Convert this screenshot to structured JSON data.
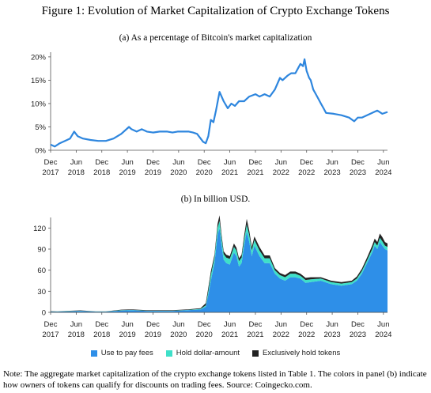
{
  "figure": {
    "title": "Figure 1: Evolution of Market Capitalization of Crypto Exchange Tokens",
    "note": "Note: The aggregate market capitalization of the crypto exchange tokens listed in Table 1. The colors in panel (b) indicate how owners of tokens can qualify for discounts on trading fees. Source: Coingecko.com."
  },
  "chart_data": [
    {
      "type": "line",
      "title": "(a) As a percentage of Bitcoin's market capitalization",
      "x_ticks": [
        {
          "m": "Dec",
          "y": "2017",
          "t": 2017.92
        },
        {
          "m": "Jun",
          "y": "2018",
          "t": 2018.42
        },
        {
          "m": "Dec",
          "y": "2018",
          "t": 2018.92
        },
        {
          "m": "Jun",
          "y": "2019",
          "t": 2019.42
        },
        {
          "m": "Dec",
          "y": "2019",
          "t": 2019.92
        },
        {
          "m": "Jun",
          "y": "2020",
          "t": 2020.42
        },
        {
          "m": "Dec",
          "y": "2020",
          "t": 2020.92
        },
        {
          "m": "Jun",
          "y": "2021",
          "t": 2021.42
        },
        {
          "m": "Dec",
          "y": "2021",
          "t": 2021.92
        },
        {
          "m": "Jun",
          "y": "2022",
          "t": 2022.42
        },
        {
          "m": "Dec",
          "y": "2022",
          "t": 2022.92
        },
        {
          "m": "Jun",
          "y": "2023",
          "t": 2023.42
        },
        {
          "m": "Dec",
          "y": "2023",
          "t": 2023.92
        },
        {
          "m": "Jun",
          "y": "2024",
          "t": 2024.42
        }
      ],
      "y_ticks": [
        {
          "label": "0%",
          "v": 0
        },
        {
          "label": "5%",
          "v": 5
        },
        {
          "label": "10%",
          "v": 10
        },
        {
          "label": "15%",
          "v": 15
        },
        {
          "label": "20%",
          "v": 20
        }
      ],
      "xlim": [
        2017.92,
        2024.5
      ],
      "ylim": [
        0,
        21
      ],
      "color": "#2e86de",
      "grid": false,
      "series": [
        {
          "x": [
            2017.92,
            2018.0,
            2018.1,
            2018.2,
            2018.3,
            2018.38,
            2018.45,
            2018.55,
            2018.7,
            2018.85,
            2019.0,
            2019.15,
            2019.3,
            2019.45,
            2019.5,
            2019.6,
            2019.7,
            2019.8,
            2019.92,
            2020.05,
            2020.2,
            2020.3,
            2020.4,
            2020.5,
            2020.62,
            2020.7,
            2020.78,
            2020.85,
            2020.9,
            2020.95,
            2021.0,
            2021.05,
            2021.1,
            2021.15,
            2021.22,
            2021.3,
            2021.38,
            2021.45,
            2021.52,
            2021.6,
            2021.7,
            2021.8,
            2021.92,
            2022.0,
            2022.1,
            2022.2,
            2022.3,
            2022.4,
            2022.45,
            2022.55,
            2022.62,
            2022.7,
            2022.75,
            2022.8,
            2022.85,
            2022.88,
            2022.92,
            2022.97,
            2023.0,
            2023.05,
            2023.1,
            2023.15,
            2023.2,
            2023.25,
            2023.3,
            2023.45,
            2023.6,
            2023.75,
            2023.85,
            2023.92,
            2024.0,
            2024.1,
            2024.2,
            2024.3,
            2024.4,
            2024.5
          ],
          "y": [
            1.2,
            0.8,
            1.5,
            2.0,
            2.5,
            4.0,
            3.0,
            2.5,
            2.2,
            2.0,
            2.0,
            2.5,
            3.5,
            5.0,
            4.5,
            4.0,
            4.5,
            4.0,
            3.8,
            4.0,
            4.0,
            3.8,
            4.0,
            4.0,
            4.0,
            3.8,
            3.5,
            2.5,
            1.8,
            1.5,
            3.0,
            6.5,
            6.0,
            8.5,
            12.5,
            10.5,
            9.0,
            10.0,
            9.5,
            10.5,
            10.5,
            11.5,
            12.0,
            11.5,
            12.0,
            11.5,
            13.0,
            15.5,
            15.0,
            16.0,
            16.5,
            16.5,
            17.5,
            18.5,
            18.0,
            19.5,
            17.0,
            15.5,
            15.0,
            13.0,
            12.0,
            11.0,
            10.0,
            9.0,
            8.0,
            7.8,
            7.5,
            7.0,
            6.2,
            7.0,
            7.0,
            7.5,
            8.0,
            8.5,
            7.8,
            8.2
          ]
        }
      ]
    },
    {
      "type": "area",
      "title": "(b) In billion USD.",
      "stacked": true,
      "x_ticks": [
        {
          "m": "Dec",
          "y": "2017",
          "t": 2017.92
        },
        {
          "m": "Jun",
          "y": "2018",
          "t": 2018.42
        },
        {
          "m": "Dec",
          "y": "2018",
          "t": 2018.92
        },
        {
          "m": "Jun",
          "y": "2019",
          "t": 2019.42
        },
        {
          "m": "Dec",
          "y": "2019",
          "t": 2019.92
        },
        {
          "m": "Jun",
          "y": "2020",
          "t": 2020.42
        },
        {
          "m": "Dec",
          "y": "2020",
          "t": 2020.92
        },
        {
          "m": "Jun",
          "y": "2021",
          "t": 2021.42
        },
        {
          "m": "Dec",
          "y": "2021",
          "t": 2021.92
        },
        {
          "m": "Jun",
          "y": "2022",
          "t": 2022.42
        },
        {
          "m": "Dec",
          "y": "2022",
          "t": 2022.92
        },
        {
          "m": "Jun",
          "y": "2023",
          "t": 2023.42
        },
        {
          "m": "Dec",
          "y": "2023",
          "t": 2023.92
        },
        {
          "m": "Jun",
          "y": "2024",
          "t": 2024.42
        }
      ],
      "y_ticks": [
        {
          "label": "0",
          "v": 0
        },
        {
          "label": "30",
          "v": 30
        },
        {
          "label": "60",
          "v": 60
        },
        {
          "label": "90",
          "v": 90
        },
        {
          "label": "120",
          "v": 120
        }
      ],
      "xlim": [
        2017.92,
        2024.5
      ],
      "ylim": [
        0,
        135
      ],
      "grid": false,
      "legend_position": "bottom",
      "x": [
        2017.92,
        2018.05,
        2018.3,
        2018.5,
        2018.8,
        2019.0,
        2019.3,
        2019.5,
        2019.8,
        2020.0,
        2020.3,
        2020.6,
        2020.85,
        2020.95,
        2021.0,
        2021.05,
        2021.12,
        2021.18,
        2021.22,
        2021.26,
        2021.3,
        2021.35,
        2021.42,
        2021.5,
        2021.55,
        2021.6,
        2021.65,
        2021.7,
        2021.75,
        2021.8,
        2021.85,
        2021.9,
        2022.0,
        2022.1,
        2022.2,
        2022.3,
        2022.4,
        2022.5,
        2022.6,
        2022.7,
        2022.8,
        2022.85,
        2022.9,
        2023.0,
        2023.2,
        2023.4,
        2023.6,
        2023.8,
        2023.9,
        2024.0,
        2024.1,
        2024.2,
        2024.25,
        2024.3,
        2024.35,
        2024.4,
        2024.45,
        2024.5
      ],
      "series": [
        {
          "name": "Use to pay fees",
          "color": "#2e8fe8",
          "values": [
            1,
            1,
            1.5,
            2,
            1,
            1,
            2.5,
            3,
            2,
            2,
            2,
            3,
            4,
            8,
            25,
            45,
            70,
            110,
            120,
            95,
            75,
            70,
            68,
            85,
            80,
            65,
            70,
            95,
            115,
            100,
            80,
            95,
            80,
            70,
            70,
            55,
            48,
            45,
            50,
            50,
            48,
            45,
            42,
            43,
            45,
            40,
            38,
            40,
            45,
            55,
            70,
            85,
            95,
            90,
            100,
            95,
            90,
            88
          ]
        },
        {
          "name": "Hold dollar-amount",
          "color": "#3ee0c9",
          "values": [
            0.2,
            0.2,
            0.3,
            0.3,
            0.2,
            0.2,
            0.5,
            0.5,
            0.4,
            0.4,
            0.4,
            0.5,
            1,
            2,
            5,
            8,
            8,
            10,
            10,
            10,
            8,
            8,
            8,
            8,
            8,
            8,
            8,
            8,
            10,
            10,
            8,
            8,
            8,
            7,
            7,
            5,
            5,
            5,
            5,
            5,
            4,
            4,
            4,
            4,
            3,
            3,
            3,
            3,
            3,
            4,
            4,
            5,
            5,
            5,
            6,
            6,
            5,
            5
          ]
        },
        {
          "name": "Exclusively hold tokens",
          "color": "#222222",
          "values": [
            0.5,
            0.3,
            0.5,
            0.5,
            0.3,
            0.3,
            0.8,
            0.8,
            0.6,
            0.6,
            0.6,
            0.8,
            1,
            3,
            5,
            5,
            4,
            6,
            8,
            5,
            4,
            4,
            4,
            5,
            4,
            4,
            4,
            6,
            8,
            6,
            5,
            5,
            5,
            4,
            4,
            3,
            3,
            3,
            3,
            3,
            3,
            3,
            3,
            3,
            2,
            2,
            2,
            2,
            3,
            3,
            4,
            5,
            5,
            5,
            6,
            6,
            5,
            5
          ]
        }
      ]
    }
  ]
}
